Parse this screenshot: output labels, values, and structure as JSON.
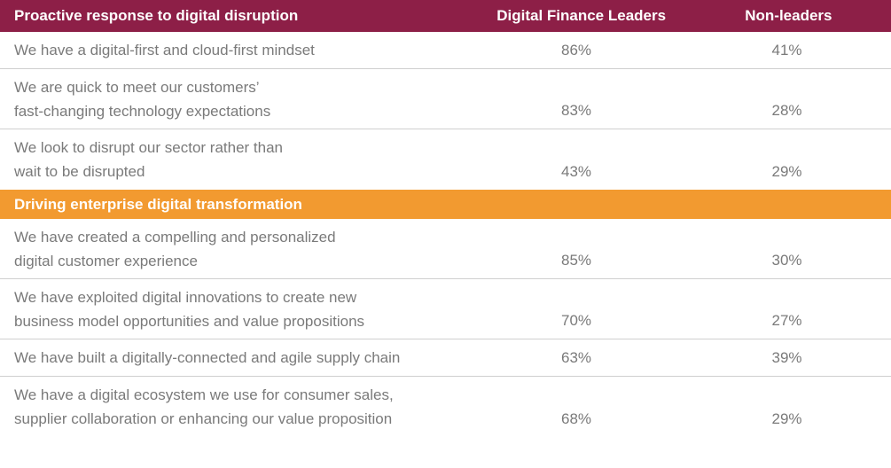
{
  "section1": {
    "title": "Proactive response to digital disruption",
    "col_leaders": "Digital Finance Leaders",
    "col_nonleaders": "Non-leaders",
    "rows": [
      {
        "label": "We have a digital-first and cloud-first mindset",
        "leaders": "86%",
        "nonleaders": "41%"
      },
      {
        "label": "We are quick to meet our customers’\nfast-changing technology expectations",
        "leaders": "83%",
        "nonleaders": "28%"
      },
      {
        "label": "We look to disrupt our sector rather than\nwait to be disrupted",
        "leaders": "43%",
        "nonleaders": "29%"
      }
    ]
  },
  "section2": {
    "title": "Driving enterprise digital transformation",
    "rows": [
      {
        "label": "We have created a compelling and personalized\ndigital customer experience",
        "leaders": "85%",
        "nonleaders": "30%"
      },
      {
        "label": "We have exploited digital innovations to create new\nbusiness model opportunities and value propositions",
        "leaders": "70%",
        "nonleaders": "27%"
      },
      {
        "label": "We have built a digitally-connected and agile supply chain",
        "leaders": "63%",
        "nonleaders": "39%"
      },
      {
        "label": "We have a digital ecosystem we use for consumer sales,\nsupplier collaboration or enhancing our value proposition",
        "leaders": "68%",
        "nonleaders": "29%"
      }
    ]
  },
  "colors": {
    "maroon": "#8d1f47",
    "orange": "#f29a30",
    "text": "#7a7a7a"
  }
}
